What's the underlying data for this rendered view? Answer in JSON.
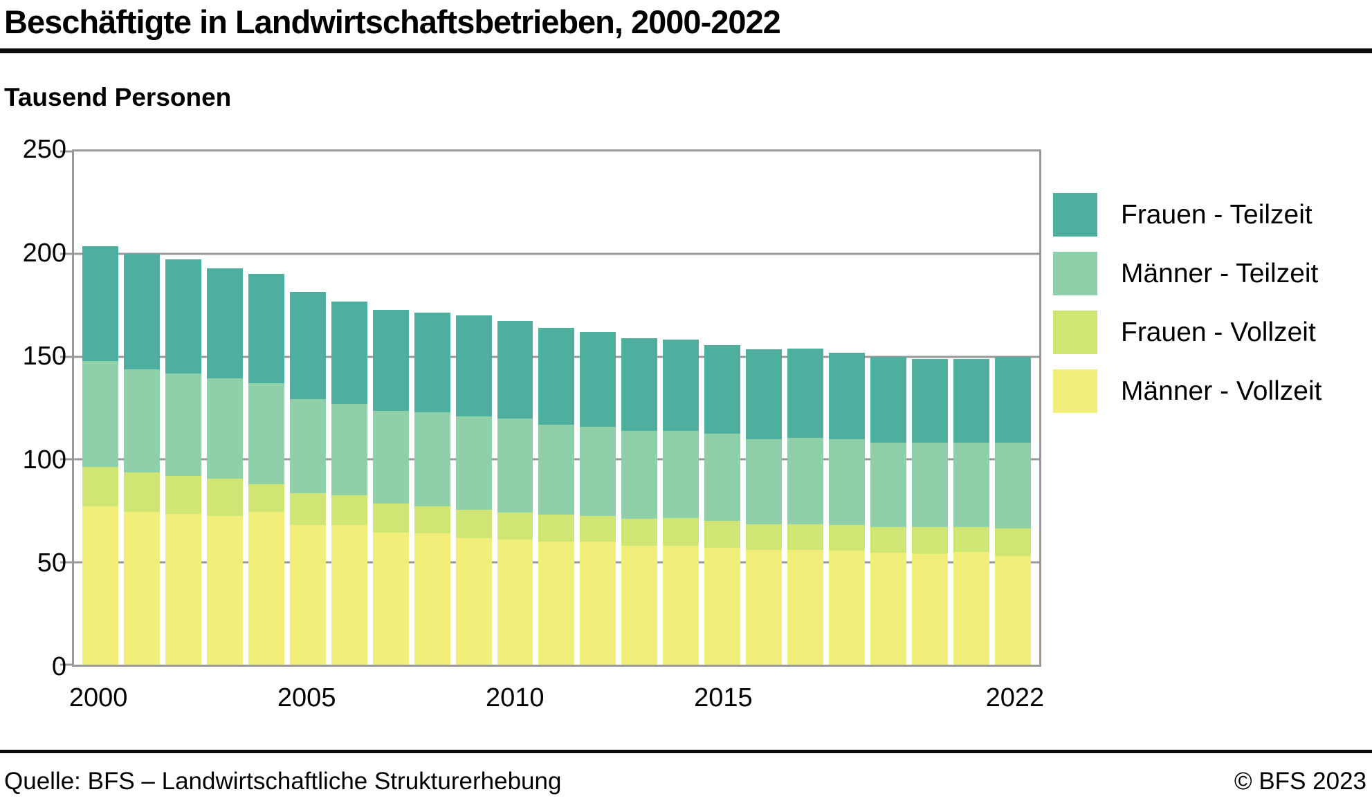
{
  "header": {
    "title": "Beschäftigte in Landwirtschaftsbetrieben, 2000-2022",
    "subtitle": "Tausend Personen"
  },
  "footer": {
    "source": "Quelle: BFS – Landwirtschaftliche Strukturerhebung",
    "copyright": "© BFS 2023"
  },
  "legend": {
    "position": "right",
    "items": [
      {
        "label": "Frauen - Teilzeit",
        "color": "#4FAF9F"
      },
      {
        "label": "Männer - Teilzeit",
        "color": "#8FCFA9"
      },
      {
        "label": "Frauen - Vollzeit",
        "color": "#D0E674"
      },
      {
        "label": "Männer - Vollzeit",
        "color": "#F1EE79"
      }
    ]
  },
  "colors": {
    "grid": "#999999",
    "rule": "#0a0a0a",
    "background": "#ffffff"
  },
  "chart_data": {
    "type": "bar",
    "stacked": true,
    "title": "Beschäftigte in Landwirtschaftsbetrieben, 2000-2022",
    "ylabel": "Tausend Personen",
    "unit": "Tausend Personen",
    "ylim": [
      0,
      250
    ],
    "yticks": [
      0,
      50,
      100,
      150,
      200,
      250
    ],
    "grid": true,
    "legend_position": "right",
    "categories": [
      2000,
      2001,
      2002,
      2003,
      2004,
      2005,
      2006,
      2007,
      2008,
      2009,
      2010,
      2011,
      2012,
      2013,
      2014,
      2015,
      2016,
      2017,
      2018,
      2019,
      2020,
      2021,
      2022
    ],
    "xtick_shown": [
      {
        "index": 0,
        "label": "2000"
      },
      {
        "index": 5,
        "label": "2005"
      },
      {
        "index": 10,
        "label": "2010"
      },
      {
        "index": 15,
        "label": "2015"
      },
      {
        "index": 22,
        "label": "2022"
      }
    ],
    "series": [
      {
        "name": "Männer - Vollzeit",
        "color": "#F1EE79",
        "values": [
          77,
          74.5,
          73.5,
          72.5,
          74.5,
          68,
          68,
          64.5,
          64,
          61.5,
          61,
          60,
          60,
          58,
          58,
          57,
          56,
          56,
          55.5,
          54.5,
          54,
          55,
          53
        ]
      },
      {
        "name": "Frauen - Vollzeit",
        "color": "#D0E674",
        "values": [
          19.5,
          19,
          18.5,
          18,
          13.5,
          15.5,
          14.5,
          14,
          13,
          14,
          13,
          13,
          12.5,
          13,
          13.5,
          13,
          12.5,
          12.5,
          12.5,
          12.5,
          13,
          12,
          13.5
        ]
      },
      {
        "name": "Männer - Teilzeit",
        "color": "#8FCFA9",
        "values": [
          51.5,
          50.5,
          50,
          49,
          49,
          46,
          44.5,
          45,
          46,
          45.5,
          46,
          44,
          43.5,
          43,
          42.5,
          42.5,
          41.5,
          42,
          42,
          41,
          41,
          41,
          41.5
        ]
      },
      {
        "name": "Frauen - Teilzeit",
        "color": "#4FAF9F",
        "values": [
          56,
          56,
          55.5,
          53.5,
          53.5,
          52,
          50,
          49.5,
          48.5,
          49,
          47.5,
          47,
          46,
          45,
          44.5,
          43,
          43.5,
          43.5,
          42,
          42,
          41,
          41,
          42
        ]
      }
    ],
    "totals": [
      204,
      200,
      197.5,
      193,
      190.5,
      181.5,
      177,
      173,
      171.5,
      170,
      167.5,
      164,
      162,
      159,
      158.5,
      155.5,
      153.5,
      154,
      152,
      150,
      149,
      149,
      150
    ]
  }
}
